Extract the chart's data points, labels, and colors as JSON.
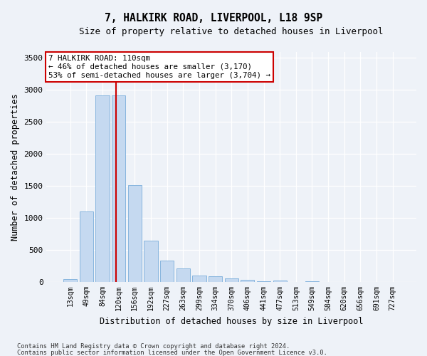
{
  "title": "7, HALKIRK ROAD, LIVERPOOL, L18 9SP",
  "subtitle": "Size of property relative to detached houses in Liverpool",
  "xlabel": "Distribution of detached houses by size in Liverpool",
  "ylabel": "Number of detached properties",
  "categories": [
    "13sqm",
    "49sqm",
    "84sqm",
    "120sqm",
    "156sqm",
    "192sqm",
    "227sqm",
    "263sqm",
    "299sqm",
    "334sqm",
    "370sqm",
    "406sqm",
    "441sqm",
    "477sqm",
    "513sqm",
    "549sqm",
    "584sqm",
    "620sqm",
    "656sqm",
    "691sqm",
    "727sqm"
  ],
  "values": [
    50,
    1100,
    2920,
    2920,
    1510,
    645,
    335,
    210,
    100,
    90,
    60,
    35,
    10,
    20,
    5,
    10,
    5,
    3,
    0,
    0,
    0
  ],
  "bar_color": "#c5d9f0",
  "bar_edge_color": "#7aadda",
  "vline_color": "#cc0000",
  "vline_pos": 2.85,
  "annotation_text": "7 HALKIRK ROAD: 110sqm\n← 46% of detached houses are smaller (3,170)\n53% of semi-detached houses are larger (3,704) →",
  "annotation_box_color": "#ffffff",
  "annotation_box_edge": "#cc0000",
  "ylim": [
    0,
    3600
  ],
  "yticks": [
    0,
    500,
    1000,
    1500,
    2000,
    2500,
    3000,
    3500
  ],
  "footer_line1": "Contains HM Land Registry data © Crown copyright and database right 2024.",
  "footer_line2": "Contains public sector information licensed under the Open Government Licence v3.0.",
  "bg_color": "#eef2f8",
  "plot_bg_color": "#eef2f8"
}
